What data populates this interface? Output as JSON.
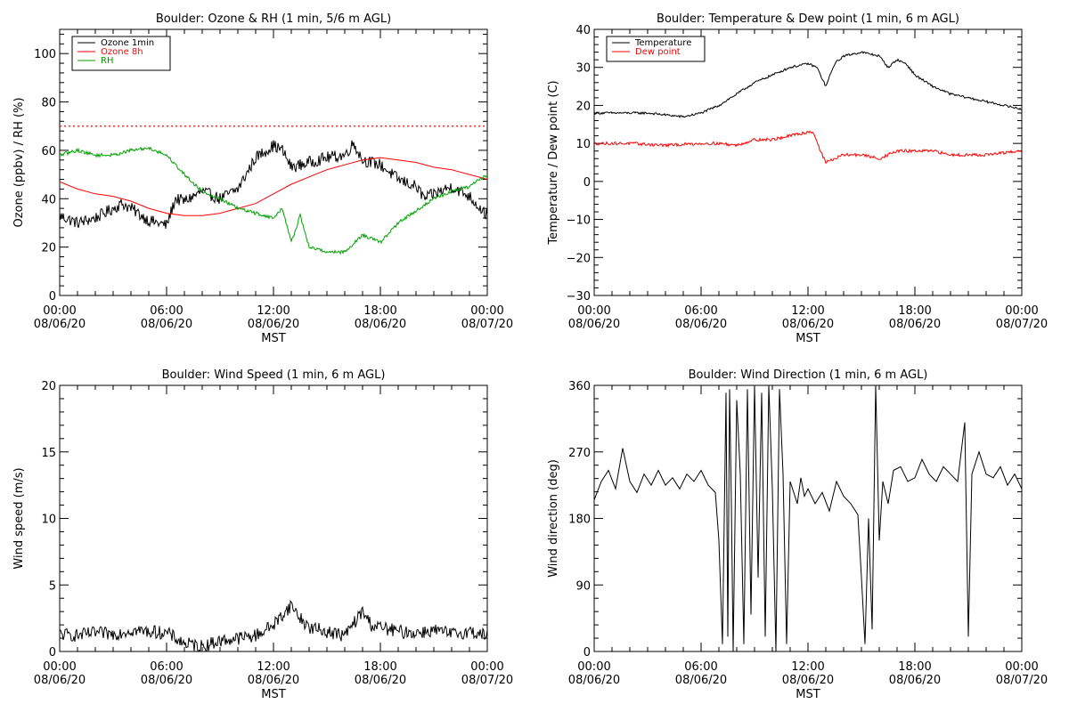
{
  "chart_data": [
    {
      "type": "line",
      "title": "Boulder: Ozone & RH (1 min, 5/6 m AGL)",
      "xlabel": "MST",
      "ylabel": "Ozone (ppbv) / RH (%)",
      "xlim": [
        0,
        24
      ],
      "ylim": [
        0,
        110
      ],
      "xticks": [
        0,
        6,
        12,
        18,
        24
      ],
      "xtick_labels": [
        "00:00\n08/06/20",
        "06:00\n08/06/20",
        "12:00\n08/06/20",
        "18:00\n08/06/20",
        "00:00\n08/07/20"
      ],
      "yticks": [
        0,
        20,
        40,
        60,
        80,
        100
      ],
      "ytick_labels": [
        "0",
        "20",
        "40",
        "60",
        "80",
        "100"
      ],
      "grid": false,
      "legend_position": "top-left",
      "reference_lines": [
        {
          "y": 70,
          "color": "#ff0000",
          "style": "dotted"
        }
      ],
      "series": [
        {
          "name": "Ozone 1min",
          "color": "#000000",
          "noise": 2.5,
          "x": [
            0,
            1,
            2,
            3,
            3.5,
            4,
            5,
            6,
            6.5,
            7,
            8,
            9,
            10,
            11,
            12,
            12.5,
            13,
            14,
            15,
            16,
            16.5,
            17,
            18,
            19,
            20,
            20.5,
            21,
            22,
            23,
            24
          ],
          "y": [
            33,
            30,
            32,
            36,
            38,
            36,
            31,
            29,
            40,
            39,
            43,
            40,
            44,
            57,
            62,
            60,
            53,
            55,
            57,
            58,
            63,
            56,
            54,
            48,
            45,
            40,
            42,
            45,
            41,
            33
          ]
        },
        {
          "name": "Ozone 8h",
          "color": "#ff0000",
          "noise": 0,
          "x": [
            0,
            1,
            2,
            3,
            4,
            5,
            6,
            7,
            8,
            9,
            10,
            11,
            12,
            13,
            14,
            15,
            16,
            17,
            18,
            19,
            20,
            21,
            22,
            23,
            24
          ],
          "y": [
            47,
            44,
            42,
            41,
            39,
            36,
            34,
            33,
            33,
            34,
            36,
            38,
            42,
            46,
            49,
            52,
            54,
            56,
            57,
            56,
            55,
            53,
            52,
            50,
            48
          ]
        },
        {
          "name": "RH",
          "color": "#00a000",
          "noise": 0.7,
          "x": [
            0,
            1,
            2,
            3,
            4,
            5,
            6,
            7,
            8,
            9,
            10,
            11,
            12,
            12.5,
            13,
            13.5,
            14,
            15,
            16,
            17,
            18,
            19,
            20,
            21,
            22,
            23,
            24
          ],
          "y": [
            58,
            60,
            58,
            58,
            60,
            61,
            58,
            50,
            43,
            40,
            36,
            34,
            32,
            36,
            22,
            33,
            20,
            18,
            18,
            25,
            22,
            30,
            35,
            40,
            43,
            45,
            50
          ]
        }
      ]
    },
    {
      "type": "line",
      "title": "Boulder: Temperature & Dew point (1 min, 6 m AGL)",
      "xlabel": "MST",
      "ylabel": "Temperature / Dew point (C)",
      "xlim": [
        0,
        24
      ],
      "ylim": [
        -30,
        40
      ],
      "xticks": [
        0,
        6,
        12,
        18,
        24
      ],
      "xtick_labels": [
        "00:00\n08/06/20",
        "06:00\n08/06/20",
        "12:00\n08/06/20",
        "18:00\n08/06/20",
        "00:00\n08/07/20"
      ],
      "yticks": [
        -30,
        -20,
        -10,
        0,
        10,
        20,
        30,
        40
      ],
      "ytick_labels": [
        "−30",
        "−20",
        "−10",
        "0",
        "10",
        "20",
        "30",
        "40"
      ],
      "grid": false,
      "legend_position": "top-left",
      "series": [
        {
          "name": "Temperature",
          "color": "#000000",
          "noise": 0.3,
          "x": [
            0,
            1,
            2,
            3,
            4,
            5,
            6,
            7,
            8,
            9,
            10,
            11,
            12,
            12.5,
            13,
            13.5,
            14,
            15,
            16,
            16.5,
            17,
            17.5,
            18,
            19,
            20,
            21,
            22,
            23,
            24
          ],
          "y": [
            18,
            18,
            18,
            18,
            17.5,
            17,
            18,
            20,
            23,
            26,
            28,
            30,
            31,
            30,
            25,
            31,
            33,
            34,
            33,
            30,
            32,
            31,
            28,
            25,
            23,
            22,
            21,
            20,
            19
          ]
        },
        {
          "name": "Dew point",
          "color": "#ff0000",
          "noise": 0.4,
          "x": [
            0,
            2,
            4,
            6,
            7,
            8,
            9,
            10,
            11,
            12,
            12.3,
            12.7,
            13,
            14,
            15,
            16,
            17,
            18,
            19,
            20,
            21,
            22,
            23,
            24
          ],
          "y": [
            10,
            10,
            9.5,
            10,
            10,
            9.5,
            11,
            11,
            12,
            13,
            13,
            8,
            5,
            7,
            7,
            6,
            8,
            8,
            8,
            7,
            7,
            7,
            7.5,
            8
          ]
        }
      ]
    },
    {
      "type": "line",
      "title": "Boulder: Wind Speed (1 min, 6 m AGL)",
      "xlabel": "MST",
      "ylabel": "Wind speed (m/s)",
      "xlim": [
        0,
        24
      ],
      "ylim": [
        0,
        20
      ],
      "xticks": [
        0,
        6,
        12,
        18,
        24
      ],
      "xtick_labels": [
        "00:00\n08/06/20",
        "06:00\n08/06/20",
        "12:00\n08/06/20",
        "18:00\n08/06/20",
        "00:00\n08/07/20"
      ],
      "yticks": [
        0,
        5,
        10,
        15,
        20
      ],
      "ytick_labels": [
        "0",
        "5",
        "10",
        "15",
        "20"
      ],
      "grid": false,
      "series": [
        {
          "color": "#000000",
          "noise": 0.5,
          "x": [
            0,
            1,
            2,
            3,
            4,
            5,
            6,
            7,
            8,
            9,
            10,
            11,
            12,
            13,
            13.5,
            14,
            15,
            16,
            17,
            17.5,
            18,
            19,
            20,
            21,
            22,
            23,
            24
          ],
          "y": [
            1.3,
            1.2,
            1.4,
            1.3,
            1.6,
            1.5,
            1.4,
            0.6,
            0.4,
            0.8,
            1.0,
            1.2,
            2.0,
            3.5,
            2.5,
            1.8,
            1.5,
            1.2,
            3.0,
            2.0,
            1.8,
            1.5,
            1.4,
            1.6,
            1.3,
            1.5,
            1.2
          ]
        }
      ]
    },
    {
      "type": "line",
      "title": "Boulder: Wind Direction (1 min, 6 m AGL)",
      "xlabel": "MST",
      "ylabel": "Wind direction (deg)",
      "xlim": [
        0,
        24
      ],
      "ylim": [
        0,
        360
      ],
      "xticks": [
        0,
        6,
        12,
        18,
        24
      ],
      "xtick_labels": [
        "00:00\n08/06/20",
        "06:00\n08/06/20",
        "12:00\n08/06/20",
        "18:00\n08/06/20",
        "00:00\n08/07/20"
      ],
      "yticks": [
        0,
        90,
        180,
        270,
        360
      ],
      "ytick_labels": [
        "0",
        "90",
        "180",
        "270",
        "360"
      ],
      "grid": false,
      "series": [
        {
          "color": "#000000",
          "noise": 0,
          "x": [
            0,
            0.4,
            0.8,
            1.2,
            1.6,
            2.0,
            2.4,
            2.8,
            3.2,
            3.6,
            4.0,
            4.4,
            4.8,
            5.2,
            5.6,
            6.0,
            6.4,
            6.8,
            7.0,
            7.2,
            7.4,
            7.5,
            7.6,
            7.7,
            7.8,
            8.0,
            8.2,
            8.4,
            8.6,
            8.8,
            9.0,
            9.2,
            9.4,
            9.6,
            9.8,
            10.0,
            10.2,
            10.4,
            10.6,
            10.8,
            11.0,
            11.2,
            11.4,
            11.6,
            11.8,
            12.0,
            12.4,
            12.8,
            13.2,
            13.6,
            14.0,
            14.4,
            14.8,
            15.0,
            15.2,
            15.4,
            15.6,
            15.8,
            16.0,
            16.2,
            16.5,
            16.8,
            17.2,
            17.6,
            18.0,
            18.4,
            18.8,
            19.2,
            19.6,
            20.0,
            20.4,
            20.8,
            21.0,
            21.2,
            21.6,
            22.0,
            22.4,
            22.8,
            23.2,
            23.6,
            24.0
          ],
          "y": [
            205,
            230,
            245,
            220,
            275,
            230,
            215,
            240,
            225,
            245,
            225,
            235,
            220,
            240,
            230,
            245,
            225,
            215,
            150,
            10,
            350,
            20,
            355,
            200,
            0,
            340,
            240,
            10,
            355,
            50,
            360,
            100,
            350,
            20,
            360,
            220,
            0,
            355,
            240,
            10,
            230,
            215,
            200,
            235,
            210,
            220,
            200,
            215,
            190,
            230,
            210,
            200,
            185,
            100,
            10,
            180,
            30,
            360,
            150,
            230,
            200,
            245,
            250,
            230,
            235,
            260,
            240,
            230,
            250,
            240,
            230,
            310,
            20,
            240,
            270,
            240,
            235,
            250,
            225,
            240,
            220
          ]
        }
      ]
    }
  ]
}
